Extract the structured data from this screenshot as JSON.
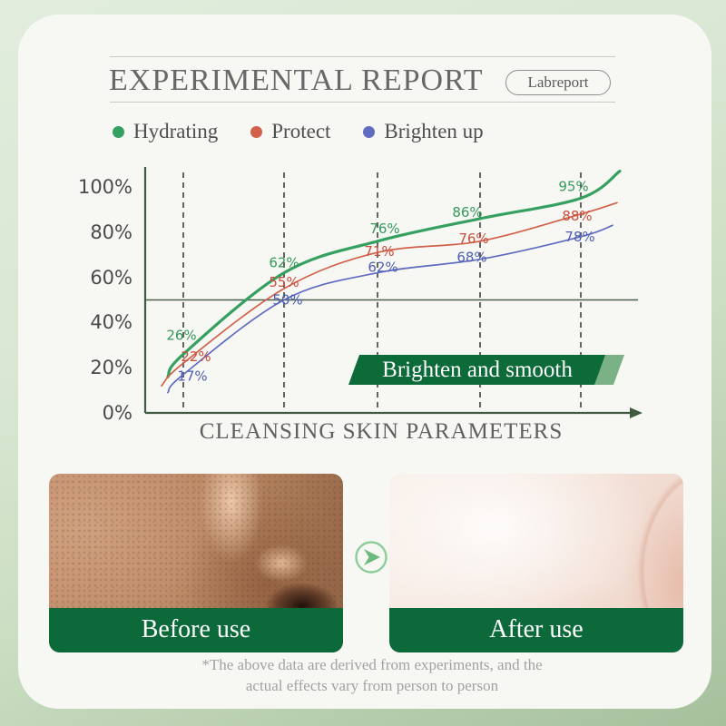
{
  "header": {
    "title": "EXPERIMENTAL REPORT",
    "badge": "Labreport"
  },
  "legend": [
    {
      "label": "Hydrating",
      "color": "#35a060"
    },
    {
      "label": "Protect",
      "color": "#d2604a"
    },
    {
      "label": "Brighten up",
      "color": "#5f6cc0"
    }
  ],
  "chart_data": {
    "type": "line",
    "title": "",
    "xlabel": "CLEANSING SKIN PARAMETERS",
    "ylabel": "",
    "y_axis": {
      "ticks": [
        "100%",
        "80%",
        "60%",
        "40%",
        "20%",
        "0%"
      ],
      "min": 0,
      "max": 100,
      "step": 20
    },
    "ylim": [
      0,
      100
    ],
    "grid": "dashed-vertical-5",
    "reference_line_value": 50,
    "legend_position": "top",
    "annotation": {
      "text": "Brighten and smooth",
      "bg_color": "#0d6a39",
      "tip_color": "#7ab285"
    },
    "series": [
      {
        "name": "Hydrating",
        "color": "#35a060",
        "label_color": "#35995b",
        "values": [
          26,
          62,
          76,
          86,
          95
        ],
        "point_labels": [
          "26%",
          "62%",
          "76%",
          "86%",
          "95%"
        ],
        "curve_start_value": 16,
        "curve_end_value": 107
      },
      {
        "name": "Protect",
        "color": "#d2604a",
        "label_color": "#c94f3d",
        "values": [
          22,
          55,
          71,
          76,
          88
        ],
        "point_labels": [
          "22%",
          "55%",
          "71%",
          "76%",
          "88%"
        ],
        "curve_start_value": 12,
        "curve_end_value": 93
      },
      {
        "name": "Brighten up",
        "color": "#5f6cc0",
        "label_color": "#4f5eb5",
        "values": [
          17,
          50,
          62,
          68,
          78
        ],
        "point_labels": [
          "17%",
          "50%",
          "62%",
          "68%",
          "78%"
        ],
        "curve_start_value": 9,
        "curve_end_value": 83
      }
    ]
  },
  "comparison": {
    "before_label": "Before use",
    "after_label": "After use"
  },
  "footnote": {
    "line1": "*The above data are derived from experiments, and the",
    "line2": "actual effects vary from person to person"
  },
  "colors": {
    "banner_green": "#0d6a39",
    "axis_green": "#3f5a3e",
    "card_bg": "#f7f8f4"
  }
}
